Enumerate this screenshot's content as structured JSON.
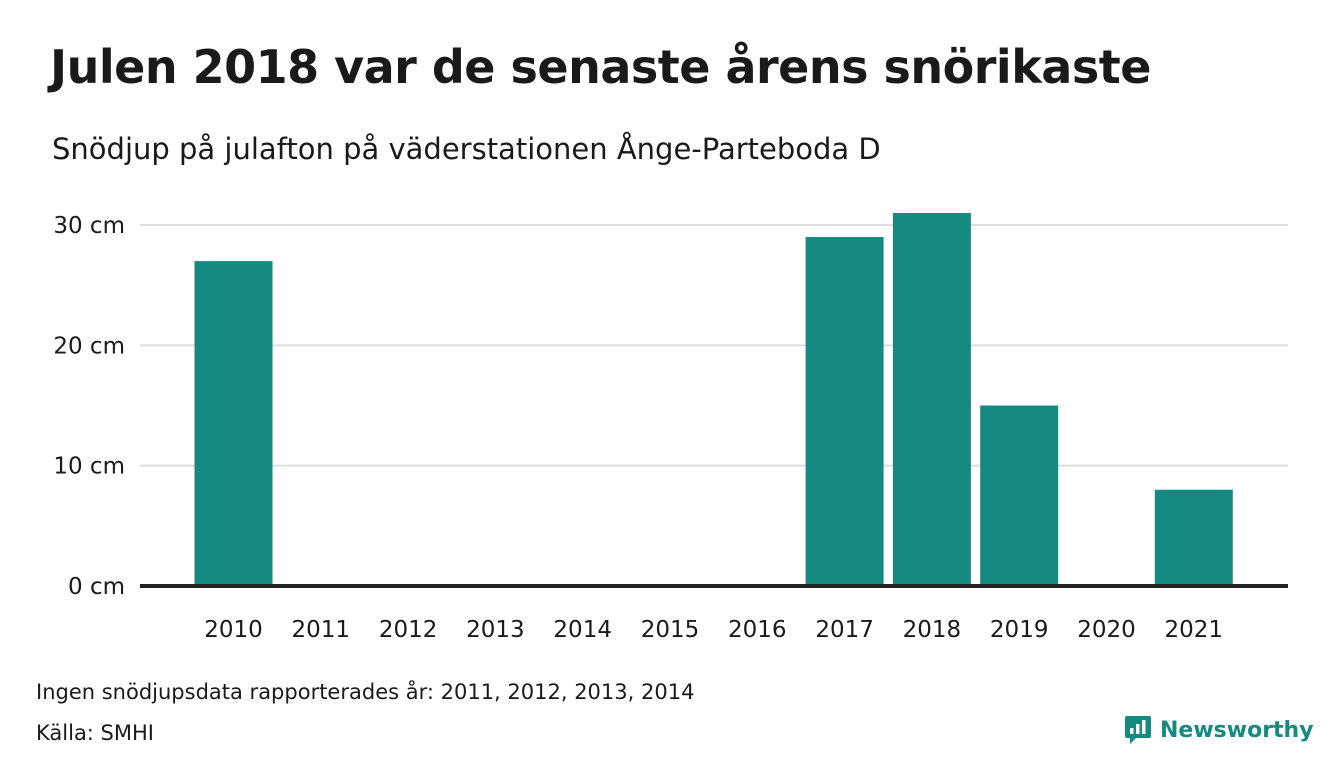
{
  "title": "Julen 2018 var de senaste årens snörikaste",
  "subtitle": "Snödjup på julafton på väderstationen Ånge-Parteboda D",
  "footnote": "Ingen snödjupsdata rapporterades år: 2011, 2012, 2013, 2014",
  "source": "Källa: SMHI",
  "brand": {
    "name": "Newsworthy",
    "icon": "newsworthy-logo-icon",
    "color": "#158a80"
  },
  "colors": {
    "bar": "#158a80",
    "grid": "#dedede",
    "baseline": "#222222"
  },
  "chart_data": {
    "type": "bar",
    "categories": [
      "2010",
      "2011",
      "2012",
      "2013",
      "2014",
      "2015",
      "2016",
      "2017",
      "2018",
      "2019",
      "2020",
      "2021"
    ],
    "values": [
      27,
      0,
      0,
      0,
      0,
      0,
      0,
      29,
      31,
      15,
      0,
      8
    ],
    "ylim": [
      0,
      30
    ],
    "y_ticks": [
      0,
      10,
      20,
      30
    ],
    "y_tick_labels": [
      "0 cm",
      "10 cm",
      "20 cm",
      "30 cm"
    ],
    "grid": true
  }
}
